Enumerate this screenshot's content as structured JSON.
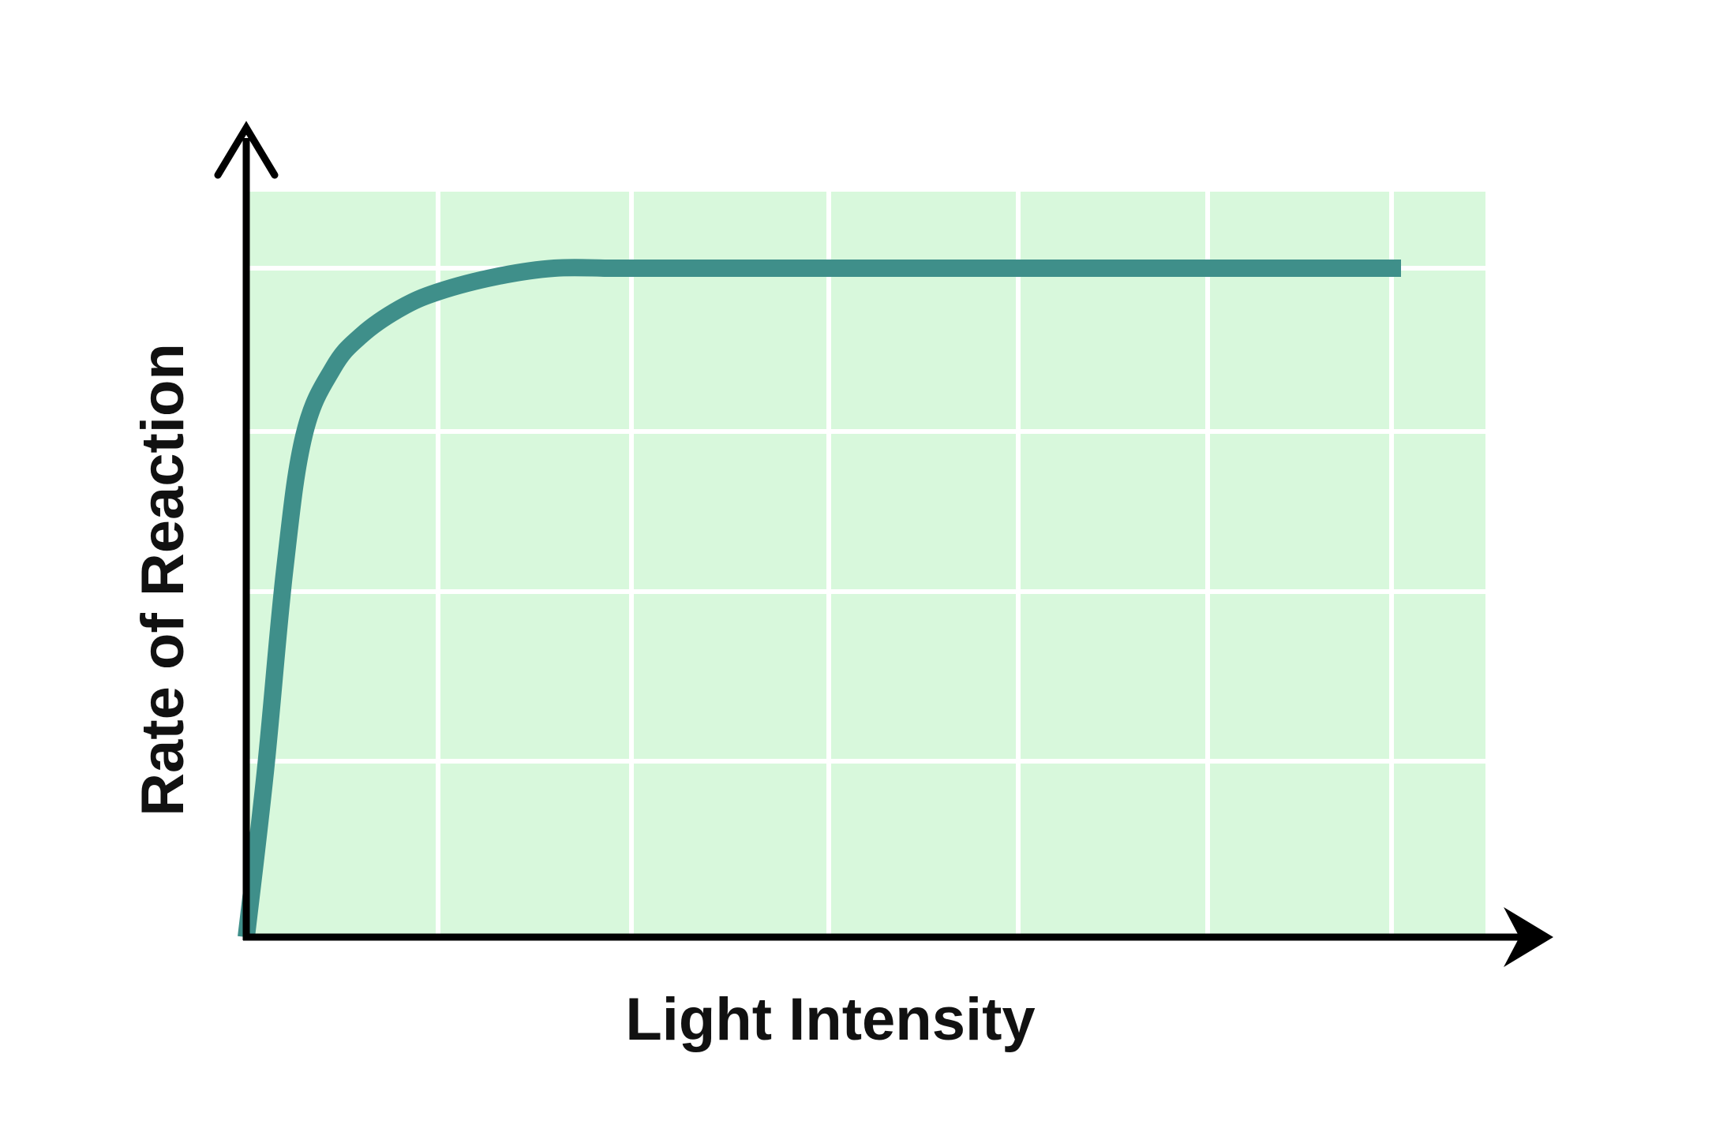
{
  "chart_data": {
    "type": "line",
    "title": "",
    "xlabel": "Light Intensity",
    "ylabel": "Rate of Reaction",
    "xlim": [
      0,
      6.5
    ],
    "ylim": [
      0,
      4.2
    ],
    "grid": true,
    "tick_labels": false,
    "series": [
      {
        "x": [
          0,
          0.1,
          0.2,
          0.3,
          0.45,
          0.6,
          0.8,
          1.0,
          1.3,
          1.6,
          1.9,
          2.2,
          3.0,
          4.0,
          5.0,
          6.0
        ],
        "values": [
          0,
          1.0,
          2.2,
          3.0,
          3.4,
          3.6,
          3.76,
          3.86,
          3.95,
          4.0,
          4.0,
          4.0,
          4.0,
          4.0,
          4.0,
          4.0
        ]
      }
    ],
    "colors": {
      "plot_background": "#d8f8dc",
      "grid": "#ffffff",
      "series": "#3f8f8a",
      "axes": "#000000"
    }
  }
}
